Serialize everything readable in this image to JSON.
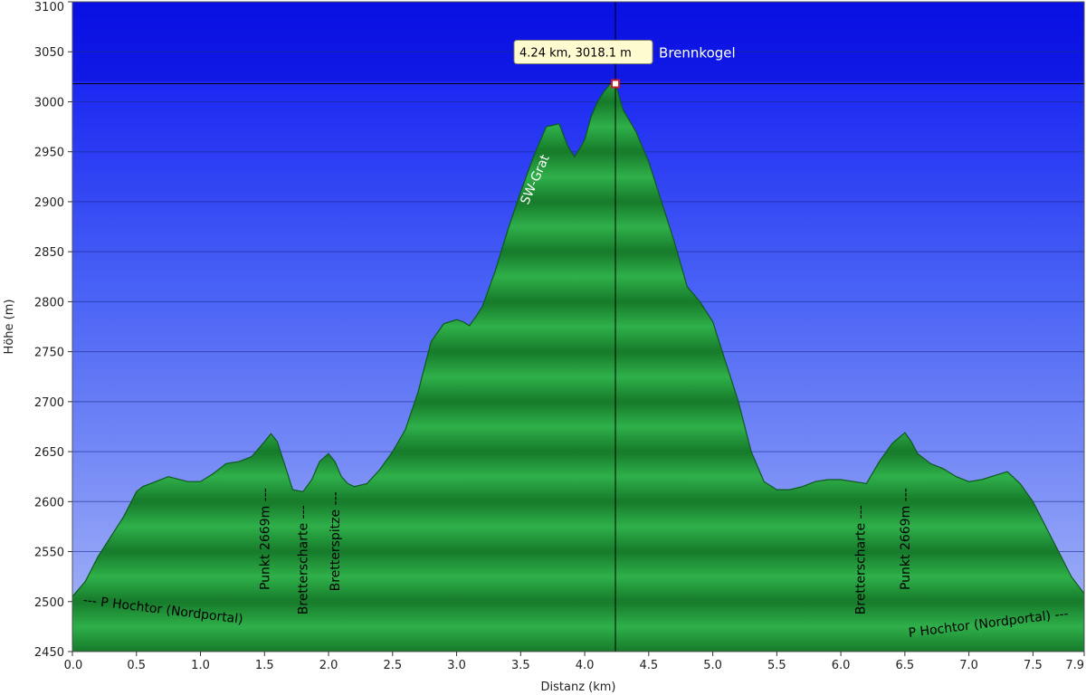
{
  "chart_data": {
    "type": "area",
    "xlabel": "Distanz (km)",
    "ylabel": "Höhe (m)",
    "xlim": [
      0,
      7.9
    ],
    "ylim": [
      2450,
      3100
    ],
    "x_ticks": [
      "0.0",
      "0.5",
      "1.0",
      "1.5",
      "2.0",
      "2.5",
      "3.0",
      "3.5",
      "4.0",
      "4.5",
      "5.0",
      "5.5",
      "6.0",
      "6.5",
      "7.0",
      "7.5",
      "7.9"
    ],
    "y_ticks": [
      "2450",
      "2500",
      "2550",
      "2600",
      "2650",
      "2700",
      "2750",
      "2800",
      "2850",
      "2900",
      "2950",
      "3000",
      "3050",
      "3100"
    ],
    "grid": true,
    "series": [
      {
        "x": [
          0.0,
          0.1,
          0.2,
          0.3,
          0.4,
          0.5,
          0.55,
          0.65,
          0.75,
          0.9,
          1.0,
          1.1,
          1.2,
          1.3,
          1.4,
          1.5,
          1.55,
          1.6,
          1.65,
          1.72,
          1.8,
          1.87,
          1.93,
          2.0,
          2.05,
          2.1,
          2.15,
          2.2,
          2.3,
          2.4,
          2.5,
          2.6,
          2.7,
          2.8,
          2.9,
          3.0,
          3.05,
          3.1,
          3.15,
          3.2,
          3.3,
          3.4,
          3.5,
          3.6,
          3.7,
          3.8,
          3.87,
          3.92,
          3.97,
          4.0,
          4.05,
          4.1,
          4.15,
          4.2,
          4.24,
          4.3,
          4.4,
          4.5,
          4.6,
          4.7,
          4.8,
          4.9,
          5.0,
          5.1,
          5.2,
          5.3,
          5.4,
          5.5,
          5.6,
          5.7,
          5.8,
          5.9,
          6.0,
          6.1,
          6.2,
          6.3,
          6.4,
          6.5,
          6.55,
          6.6,
          6.7,
          6.8,
          6.9,
          7.0,
          7.1,
          7.2,
          7.3,
          7.4,
          7.5,
          7.6,
          7.7,
          7.8,
          7.9
        ],
        "y": [
          2505,
          2520,
          2545,
          2565,
          2585,
          2610,
          2615,
          2620,
          2625,
          2620,
          2620,
          2628,
          2638,
          2640,
          2645,
          2660,
          2668,
          2660,
          2640,
          2612,
          2610,
          2622,
          2640,
          2648,
          2640,
          2625,
          2618,
          2615,
          2618,
          2632,
          2650,
          2672,
          2710,
          2760,
          2778,
          2782,
          2780,
          2776,
          2785,
          2795,
          2830,
          2872,
          2910,
          2945,
          2975,
          2978,
          2955,
          2945,
          2955,
          2962,
          2985,
          3000,
          3010,
          3018,
          3018.1,
          2992,
          2970,
          2940,
          2900,
          2860,
          2815,
          2800,
          2780,
          2740,
          2700,
          2650,
          2620,
          2612,
          2612,
          2615,
          2620,
          2622,
          2622,
          2620,
          2618,
          2640,
          2658,
          2669,
          2660,
          2648,
          2638,
          2633,
          2625,
          2620,
          2622,
          2626,
          2630,
          2618,
          2600,
          2575,
          2550,
          2525,
          2508
        ]
      }
    ],
    "marker": {
      "x": 4.24,
      "y": 3018.1
    },
    "tooltip": "4.24 km, 3018.1 m",
    "annotations": [
      {
        "text": "Brennkogel",
        "x": 4.24,
        "y": 3018.1
      },
      {
        "text": "SW-Grat",
        "x": 3.5,
        "y": 2900
      },
      {
        "text": "--- P Hochtor (Nordportal)",
        "x": 0.1,
        "y": 2495
      },
      {
        "text": "Punkt 2669m ---",
        "x": 1.5,
        "y": 2630
      },
      {
        "text": "Bretterscharte ---",
        "x": 1.8,
        "y": 2600
      },
      {
        "text": "Bretterspitze ---",
        "x": 2.05,
        "y": 2610
      },
      {
        "text": "Bretterscharte ---",
        "x": 6.15,
        "y": 2600
      },
      {
        "text": "Punkt 2669m ---",
        "x": 6.5,
        "y": 2630
      },
      {
        "text": "P Hochtor (Nordportal) ---",
        "x": 7.8,
        "y": 2495
      }
    ]
  }
}
